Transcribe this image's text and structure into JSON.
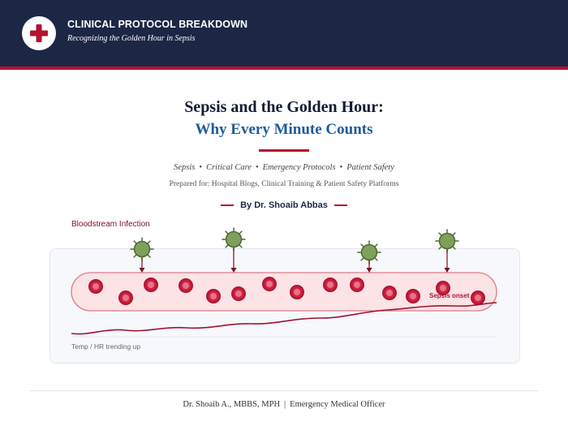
{
  "header": {
    "logo_icon": "medical-cross-icon",
    "title": "CLINICAL PROTOCOL BREAKDOWN",
    "subtitle": "Recognizing the Golden Hour in Sepsis"
  },
  "document": {
    "title": "Sepsis and the Golden Hour:",
    "subtitle": "Why Every Minute Counts",
    "tags": [
      "Sepsis",
      "Critical Care",
      "Emergency Protocols",
      "Patient Safety"
    ],
    "tag_separator": "•",
    "prepared_for": "Prepared for: Hospital Blogs, Clinical Training & Patient Safety Platforms",
    "byline": "By Dr. Shoaib Abbas"
  },
  "illustration": {
    "infection_label": "Bloodstream Infection",
    "onset_label": "Sepsis onset",
    "trend_label": "Temp / HR trending up",
    "pathogen_icon": "bacteria-icon",
    "cell_icon": "red-blood-cell-icon"
  },
  "footer": {
    "name": "Dr. Shoaib A., MBBS, MPH",
    "separator": "|",
    "role": "Emergency Medical Officer"
  },
  "colors": {
    "header_bg": "#1b2745",
    "accent_red": "#b3122e",
    "subtitle_blue": "#1f5b99",
    "pathogen_green": "#7da05a",
    "vessel_fill": "#fbe3e6"
  }
}
